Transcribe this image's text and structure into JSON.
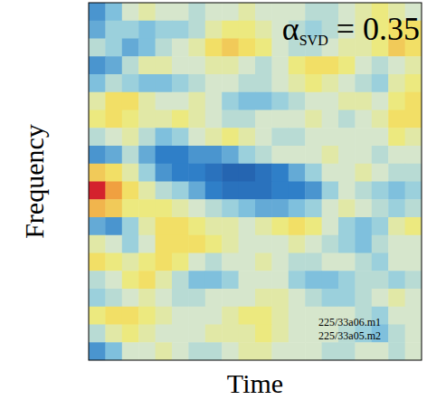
{
  "chart_data": {
    "type": "heatmap",
    "title": {
      "symbol": "α",
      "subscript": "SVD",
      "text": " = 0.35"
    },
    "x_label": "Time",
    "y_label": "Frequency",
    "annotations": [
      "225/33a06.m1",
      "225/33a05.m2"
    ],
    "tick_labels": false,
    "zlim": [
      -1,
      1
    ],
    "cells": [
      [
        -0.5,
        -0.3,
        0,
        0.1,
        0,
        0,
        -0.1,
        0,
        0,
        0.1,
        0,
        0,
        0,
        -0.1,
        -0.1,
        0,
        0.1,
        0.2,
        0.1,
        0
      ],
      [
        -0.4,
        -0.2,
        -0.2,
        -0.3,
        -0.2,
        -0.2,
        -0.1,
        0.1,
        0.2,
        0.2,
        0.1,
        0,
        -0.1,
        -0.2,
        -0.1,
        0,
        0.1,
        0.2,
        0.3,
        0.3
      ],
      [
        -0.1,
        -0.2,
        -0.4,
        -0.3,
        -0.1,
        0,
        0.1,
        0.3,
        0.4,
        0.3,
        0.2,
        0,
        -0.1,
        -0.1,
        0,
        0.1,
        0.1,
        0.2,
        0.4,
        0.3
      ],
      [
        -0.5,
        -0.4,
        -0.1,
        0.1,
        0.1,
        0,
        0,
        0.1,
        0.1,
        0,
        -0.1,
        0,
        0.2,
        0.3,
        0.3,
        0.2,
        0,
        -0.1,
        0,
        0.1
      ],
      [
        -0.3,
        -0.1,
        -0.2,
        -0.3,
        -0.3,
        -0.2,
        -0.1,
        0,
        0,
        -0.1,
        -0.1,
        0,
        0.1,
        0.2,
        0.1,
        0,
        -0.1,
        -0.2,
        0.1,
        0.2
      ],
      [
        0.1,
        0.3,
        0.3,
        0.1,
        0,
        0,
        0.1,
        0,
        -0.2,
        -0.3,
        -0.3,
        -0.2,
        -0.1,
        0,
        0,
        0.1,
        0.1,
        0,
        0.2,
        0.3
      ],
      [
        0.2,
        0.3,
        0.2,
        0.1,
        0.1,
        0.2,
        0.1,
        0,
        -0.1,
        -0.1,
        0,
        0,
        0,
        0.1,
        0,
        -0.1,
        0,
        0.1,
        0.3,
        0.3
      ],
      [
        -0.1,
        0,
        0.1,
        -0.1,
        -0.3,
        -0.2,
        0,
        0.1,
        0.2,
        0.1,
        0,
        -0.1,
        -0.1,
        0,
        0,
        0,
        0,
        0,
        0.2,
        0.1
      ],
      [
        -0.5,
        -0.4,
        -0.1,
        -0.4,
        -0.6,
        -0.6,
        -0.5,
        -0.5,
        -0.4,
        -0.2,
        -0.1,
        0,
        0,
        0,
        0.1,
        0,
        0,
        -0.1,
        0,
        0
      ],
      [
        0.4,
        0.3,
        0.1,
        -0.2,
        -0.5,
        -0.6,
        -0.6,
        -0.7,
        -0.8,
        -0.8,
        -0.7,
        -0.6,
        -0.4,
        -0.2,
        0,
        0,
        0.1,
        0,
        -0.1,
        -0.1
      ],
      [
        0.95,
        0.6,
        0.3,
        0.1,
        -0.1,
        -0.2,
        -0.4,
        -0.6,
        -0.7,
        -0.7,
        -0.7,
        -0.6,
        -0.6,
        -0.5,
        -0.2,
        0,
        -0.1,
        -0.2,
        -0.3,
        -0.2
      ],
      [
        0.5,
        0.4,
        0.2,
        0.2,
        0.2,
        0.1,
        0,
        -0.1,
        -0.2,
        -0.3,
        -0.4,
        -0.4,
        -0.3,
        -0.2,
        0,
        0.1,
        0,
        -0.1,
        -0.2,
        -0.1
      ],
      [
        -0.4,
        -0.5,
        -0.2,
        0.1,
        0.3,
        0.3,
        0.2,
        0.1,
        0.1,
        0,
        0.1,
        0.2,
        0.3,
        0.2,
        0,
        -0.2,
        -0.3,
        -0.2,
        0.1,
        0.2
      ],
      [
        0.1,
        0,
        -0.2,
        0,
        0.3,
        0.3,
        0.3,
        0.2,
        0.1,
        0,
        0,
        0,
        0.1,
        0,
        -0.1,
        -0.2,
        -0.3,
        -0.1,
        0,
        0
      ],
      [
        0.3,
        0.2,
        0.1,
        0.2,
        0.3,
        0.2,
        0,
        -0.1,
        0,
        0,
        0.1,
        0,
        -0.1,
        -0.1,
        0,
        0,
        -0.1,
        -0.2,
        0,
        0
      ],
      [
        -0.1,
        0,
        0.2,
        0.3,
        0.1,
        -0.1,
        -0.3,
        -0.3,
        -0.2,
        0,
        0,
        0,
        -0.2,
        -0.3,
        -0.3,
        -0.2,
        -0.1,
        -0.1,
        -0.2,
        -0.1
      ],
      [
        -0.2,
        -0.1,
        0,
        0.1,
        0,
        -0.1,
        -0.1,
        0,
        0,
        0,
        0.1,
        0.1,
        0,
        -0.1,
        -0.2,
        -0.2,
        -0.1,
        0,
        0.1,
        0
      ],
      [
        0.2,
        0.3,
        0.3,
        0.2,
        0.1,
        0,
        0,
        0,
        0.1,
        0.2,
        0.2,
        0.1,
        0,
        0,
        0,
        0,
        -0.1,
        -0.2,
        0,
        0
      ],
      [
        -0.1,
        0.1,
        0.2,
        0.1,
        0,
        0,
        0,
        0.1,
        0.1,
        0.1,
        0.2,
        0.1,
        0,
        0,
        0,
        -0.1,
        -0.2,
        -0.3,
        -0.1,
        0
      ],
      [
        -0.5,
        -0.3,
        0,
        0,
        0.1,
        0,
        -0.1,
        -0.1,
        0,
        0.1,
        0.1,
        0,
        0,
        0,
        -0.1,
        -0.1,
        0,
        0,
        -0.1,
        0
      ]
    ]
  }
}
